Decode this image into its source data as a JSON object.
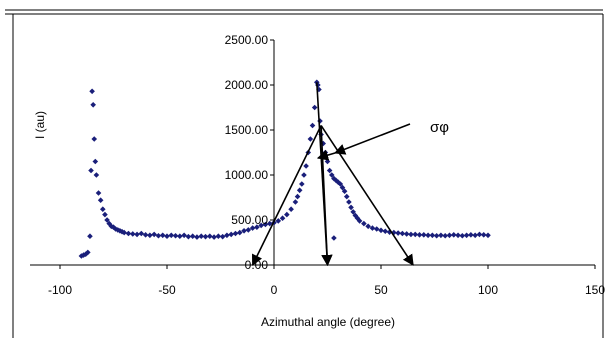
{
  "chart_data": {
    "type": "scatter",
    "title": "",
    "xlabel": "Azimuthal angle (degree)",
    "ylabel": "I (au)",
    "xlim": [
      -100,
      150
    ],
    "ylim": [
      0,
      2500
    ],
    "x_ticks": [
      "-100",
      "-50",
      "0",
      "50",
      "100",
      "150"
    ],
    "y_ticks": [
      "0.00",
      "500.00",
      "1000.00",
      "1500.00",
      "2000.00",
      "2500.00"
    ],
    "grid": false,
    "legend": "none",
    "marker": "diamond",
    "marker_color": "#1a1f7a",
    "annotation": "σφ",
    "series": [
      {
        "x": [
          -90,
          -89,
          -88,
          -87,
          -86,
          -85.5,
          -85,
          -84.5,
          -84,
          -83.5,
          -83,
          -82,
          -81,
          -80,
          -79,
          -78,
          -77,
          -76,
          -75,
          -74,
          -73,
          -72,
          -71,
          -70,
          -68,
          -66,
          -64,
          -62,
          -60,
          -58,
          -56,
          -54,
          -52,
          -50,
          -48,
          -46,
          -44,
          -42,
          -40,
          -38,
          -36,
          -34,
          -32,
          -30,
          -28,
          -26,
          -24,
          -22,
          -20,
          -18,
          -16,
          -14,
          -12,
          -10,
          -8,
          -6,
          -4,
          -2,
          0,
          2,
          4,
          6,
          8,
          10,
          11,
          12,
          13,
          14,
          15,
          16,
          17,
          18,
          19,
          20,
          20.5,
          21,
          21.5,
          22,
          23,
          24,
          25,
          26,
          27,
          28,
          29,
          30,
          31,
          32,
          33,
          34,
          35,
          36,
          37,
          38,
          39,
          40,
          42,
          44,
          46,
          48,
          50,
          52,
          54,
          56,
          58,
          60,
          62,
          64,
          66,
          68,
          70,
          72,
          74,
          76,
          78,
          80,
          82,
          84,
          86,
          88,
          90,
          92,
          94,
          96,
          98,
          100
        ],
        "y": [
          100,
          110,
          120,
          140,
          320,
          1050,
          1930,
          1780,
          1400,
          1150,
          1000,
          800,
          720,
          620,
          560,
          500,
          460,
          430,
          420,
          400,
          390,
          380,
          370,
          360,
          350,
          345,
          340,
          350,
          335,
          330,
          340,
          325,
          330,
          320,
          330,
          325,
          320,
          330,
          315,
          320,
          310,
          320,
          315,
          320,
          310,
          320,
          315,
          330,
          340,
          350,
          360,
          380,
          390,
          410,
          420,
          440,
          450,
          460,
          470,
          490,
          520,
          560,
          620,
          700,
          760,
          830,
          900,
          1000,
          1100,
          1250,
          1400,
          1550,
          1750,
          2030,
          2000,
          1950,
          1600,
          1450,
          1350,
          1250,
          1150,
          1050,
          1000,
          960,
          940,
          920,
          900,
          860,
          820,
          760,
          700,
          640,
          590,
          550,
          520,
          490,
          460,
          430,
          410,
          400,
          385,
          375,
          365,
          360,
          355,
          350,
          345,
          340,
          340,
          335,
          335,
          330,
          330,
          325,
          330,
          325,
          330,
          335,
          330,
          325,
          330,
          335,
          330,
          340,
          335,
          330
        ]
      }
    ],
    "stray_point": {
      "x": 28,
      "y": 300
    },
    "arrows": [
      {
        "from": [
          22,
          1550
        ],
        "to": [
          -10,
          0
        ]
      },
      {
        "from": [
          22,
          1550
        ],
        "to": [
          25,
          0
        ]
      },
      {
        "from": [
          22,
          1550
        ],
        "to": [
          65,
          0
        ]
      },
      {
        "from": [
          20,
          2030
        ],
        "to": [
          25,
          0
        ]
      }
    ]
  }
}
